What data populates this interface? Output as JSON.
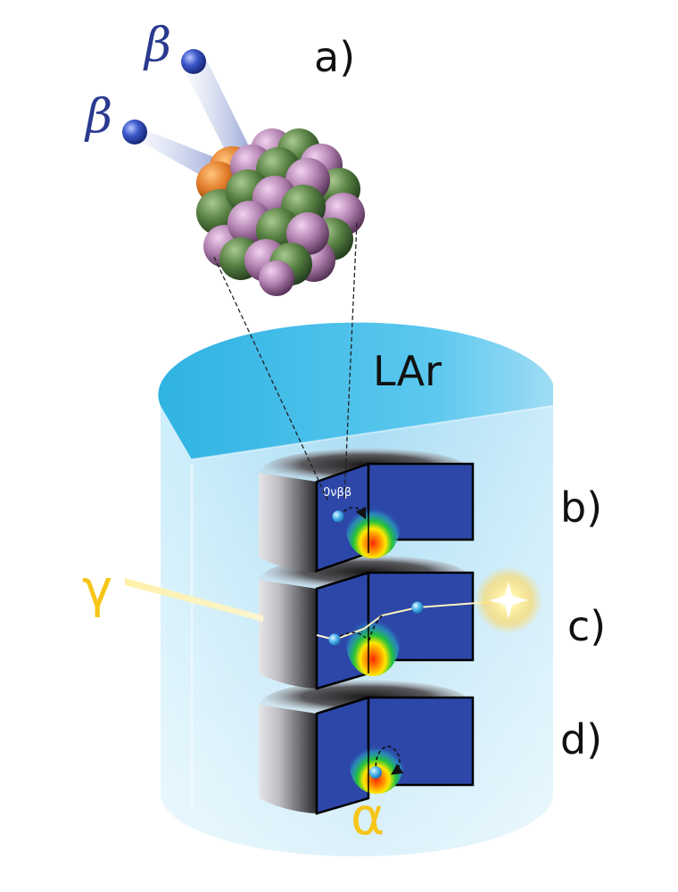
{
  "labels": {
    "panel_a": "a)",
    "panel_b": "b)",
    "panel_c": "c)",
    "panel_d": "d)",
    "medium": "LAr",
    "beta_upper": "β",
    "beta_lower": "β",
    "gamma": "γ",
    "alpha": "α",
    "decay_mode": "0νββ"
  },
  "colors": {
    "beta_text": "#2b3a8f",
    "gamma_alpha_text": "#f5c518",
    "lar_top": "#3fbce6",
    "lar_body": "#bfe6f8",
    "detector_face": "#2c47a8",
    "nucleus_green": "#4f7a3f",
    "nucleus_purple": "#a777a6",
    "nucleus_orange": "#d9782a"
  }
}
